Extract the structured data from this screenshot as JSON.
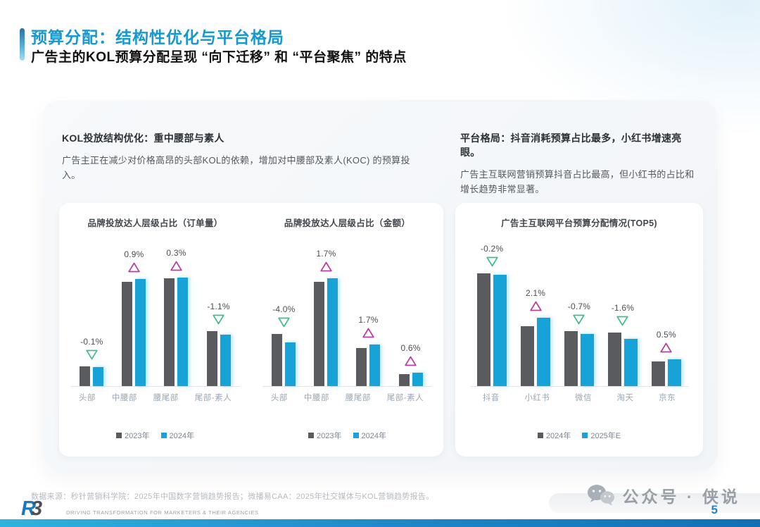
{
  "header": {
    "title": "预算分配：结构性优化与平台格局",
    "subtitle": "广告主的KOL预算分配呈现 “向下迁移” 和 “平台聚焦” 的特点"
  },
  "sections": {
    "left": {
      "heading": "KOL投放结构优化：重中腰部与素人",
      "body": "广告主正在减少对价格高昂的头部KOL的依赖，增加对中腰部及素人(KOC) 的预算投入。"
    },
    "right": {
      "heading": "平台格局：抖音消耗预算占比最多，小红书增速亮眼。",
      "body": "广告主互联网营销预算抖音占比最高，但小红书的占比和增长趋势非常显著。"
    }
  },
  "chart_data": [
    {
      "type": "bar",
      "title": "品牌投放达人层级占比（订单量）",
      "categories": [
        "头部",
        "中腰部",
        "腰尾部",
        "尾部-素人"
      ],
      "series": [
        {
          "name": "2023年",
          "color": "#595b5f",
          "values": [
            6.8,
            36.5,
            37.6,
            19.2
          ]
        },
        {
          "name": "2024年",
          "color": "#17a3d8",
          "values": [
            6.7,
            37.4,
            37.9,
            18.1
          ]
        }
      ],
      "change_labels": [
        "-0.1%",
        "0.9%",
        "0.3%",
        "-1.1%"
      ],
      "change_direction": [
        "down",
        "up",
        "up",
        "down"
      ],
      "unit": "%",
      "ylim": [
        0,
        53
      ],
      "grid": false,
      "legend_position": "bottom"
    },
    {
      "type": "bar",
      "title": "品牌投放达人层级占比（金额）",
      "categories": [
        "头部",
        "中腰部",
        "腰尾部",
        "尾部-素人"
      ],
      "series": [
        {
          "name": "2023年",
          "color": "#595b5f",
          "values": [
            25.0,
            50.3,
            18.5,
            5.8
          ]
        },
        {
          "name": "2024年",
          "color": "#17a3d8",
          "values": [
            21.0,
            52.0,
            20.2,
            6.4
          ]
        }
      ],
      "change_labels": [
        "-4.0%",
        "1.7%",
        "1.7%",
        "0.6%"
      ],
      "change_direction": [
        "down",
        "up",
        "up",
        "up"
      ],
      "unit": "%",
      "ylim": [
        0,
        73
      ],
      "grid": false,
      "legend_position": "bottom"
    },
    {
      "type": "bar",
      "title": "广告主互联网平台预算分配情况(TOP5)",
      "categories": [
        "抖音",
        "小红书",
        "微信",
        "淘天",
        "京东"
      ],
      "series": [
        {
          "name": "2024年",
          "color": "#595b5f",
          "values": [
            28.2,
            15.0,
            13.7,
            13.5,
            6.2
          ]
        },
        {
          "name": "2025年E",
          "color": "#17a3d8",
          "values": [
            28.0,
            17.1,
            13.0,
            11.9,
            6.7
          ]
        }
      ],
      "change_labels": [
        "-0.2%",
        "2.1%",
        "-0.7%",
        "-1.6%",
        "0.5%"
      ],
      "change_direction": [
        "down",
        "up",
        "down",
        "down",
        "up"
      ],
      "unit": "%",
      "ylim": [
        0,
        38
      ],
      "grid": false,
      "legend_position": "bottom"
    }
  ],
  "footer": {
    "source": "数据来源：秒针营销科学院：2025年中国数字营销趋势报告；微播易CAA：2025年社交媒体与KOL营销趋势报告。",
    "logo_r": "R",
    "logo_3": "3",
    "tagline": "DRIVING TRANSFORMATION FOR MARKETERS & THEIR AGENCIES",
    "watermark": "公众号 · 侠说",
    "page_number": "5"
  },
  "colors": {
    "title_blue": "#1798d0",
    "bar_gray": "#595b5f",
    "bar_blue": "#17a3d8",
    "up_triangle": "#b83da0",
    "down_triangle": "#43bd8e",
    "page_number_blue": "#2e7fc1"
  }
}
